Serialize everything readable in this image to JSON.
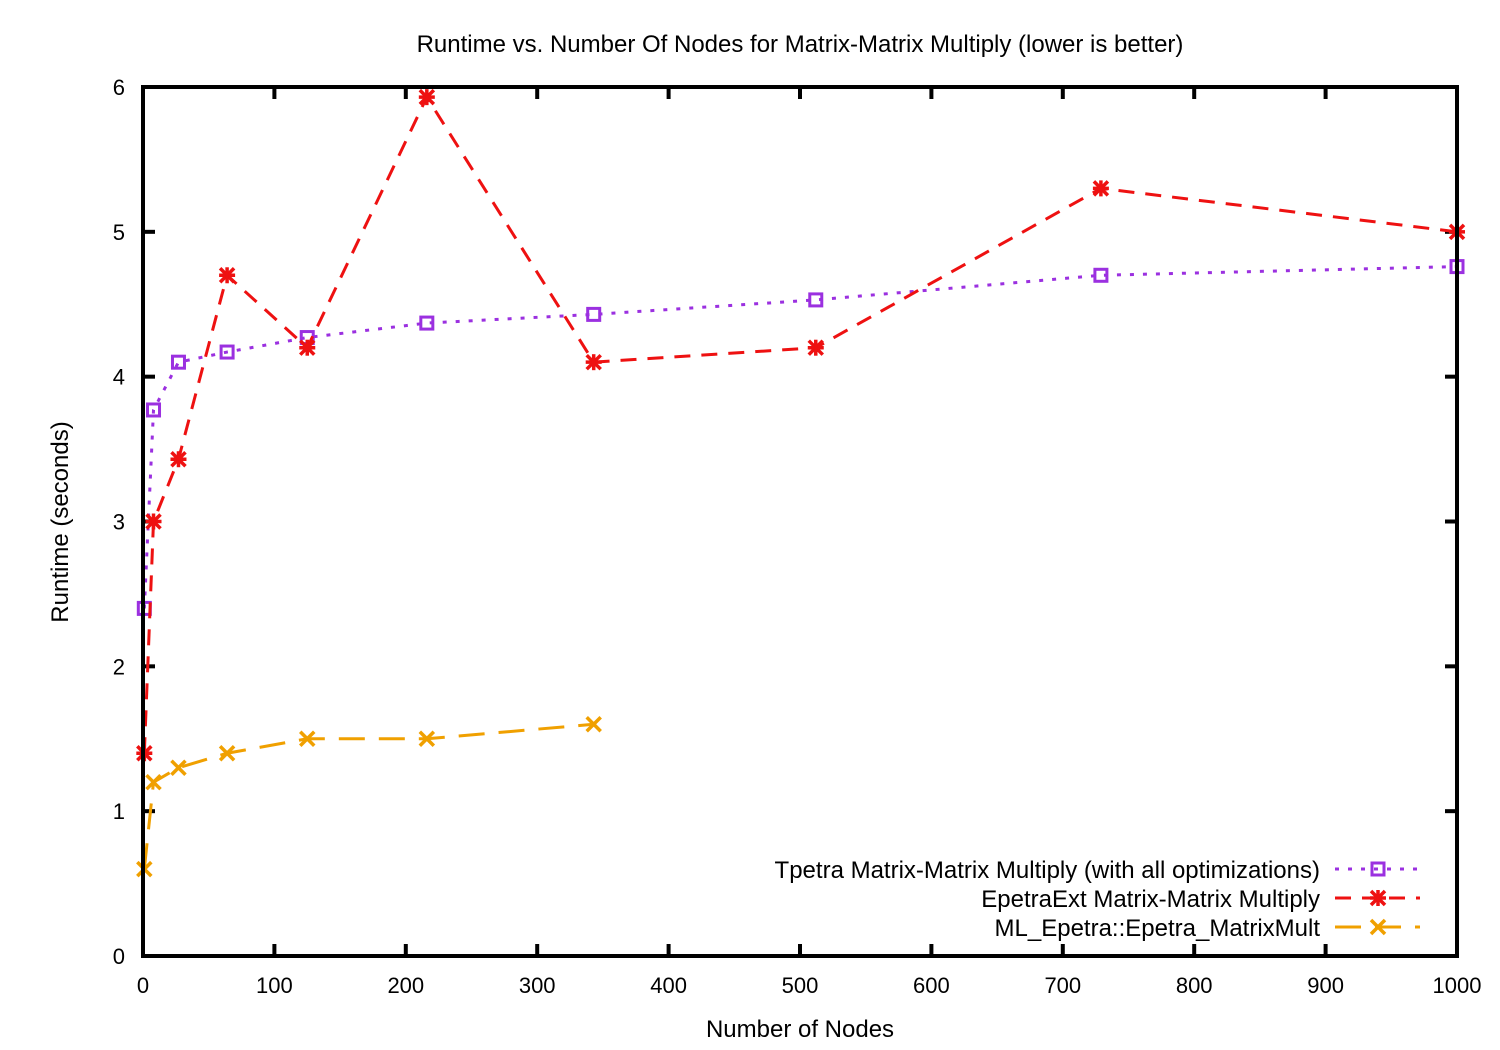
{
  "chart_data": {
    "type": "line",
    "title": "Runtime vs. Number Of Nodes for Matrix-Matrix Multiply (lower is better)",
    "xlabel": "Number of Nodes",
    "ylabel": "Runtime (seconds)",
    "xlim": [
      0,
      1000
    ],
    "ylim": [
      0,
      6
    ],
    "xticks": [
      0,
      100,
      200,
      300,
      400,
      500,
      600,
      700,
      800,
      900,
      1000
    ],
    "yticks": [
      0,
      1,
      2,
      3,
      4,
      5,
      6
    ],
    "grid": false,
    "legend_position": "bottom-right",
    "series": [
      {
        "name": "Tpetra Matrix-Matrix Multiply (with all optimizations)",
        "color": "#9b30e0",
        "marker": "square",
        "dash": "dotted",
        "points": [
          [
            1,
            2.4
          ],
          [
            8,
            3.77
          ],
          [
            27,
            4.1
          ],
          [
            64,
            4.17
          ],
          [
            125,
            4.27
          ],
          [
            216,
            4.37
          ],
          [
            343,
            4.43
          ],
          [
            512,
            4.53
          ],
          [
            729,
            4.7
          ],
          [
            1000,
            4.76
          ]
        ]
      },
      {
        "name": "EpetraExt Matrix-Matrix Multiply",
        "color": "#ee1111",
        "marker": "star",
        "dash": "dashed",
        "points": [
          [
            1,
            1.4
          ],
          [
            8,
            3.0
          ],
          [
            27,
            3.43
          ],
          [
            64,
            4.7
          ],
          [
            125,
            4.2
          ],
          [
            216,
            5.93
          ],
          [
            343,
            4.1
          ],
          [
            512,
            4.2
          ],
          [
            729,
            5.3
          ],
          [
            1000,
            5.0
          ]
        ]
      },
      {
        "name": "ML_Epetra::Epetra_MatrixMult",
        "color": "#f0a000",
        "marker": "x",
        "dash": "longdash",
        "points": [
          [
            1,
            0.6
          ],
          [
            8,
            1.2
          ],
          [
            27,
            1.3
          ],
          [
            64,
            1.4
          ],
          [
            125,
            1.5
          ],
          [
            216,
            1.5
          ],
          [
            343,
            1.6
          ]
        ]
      }
    ]
  }
}
